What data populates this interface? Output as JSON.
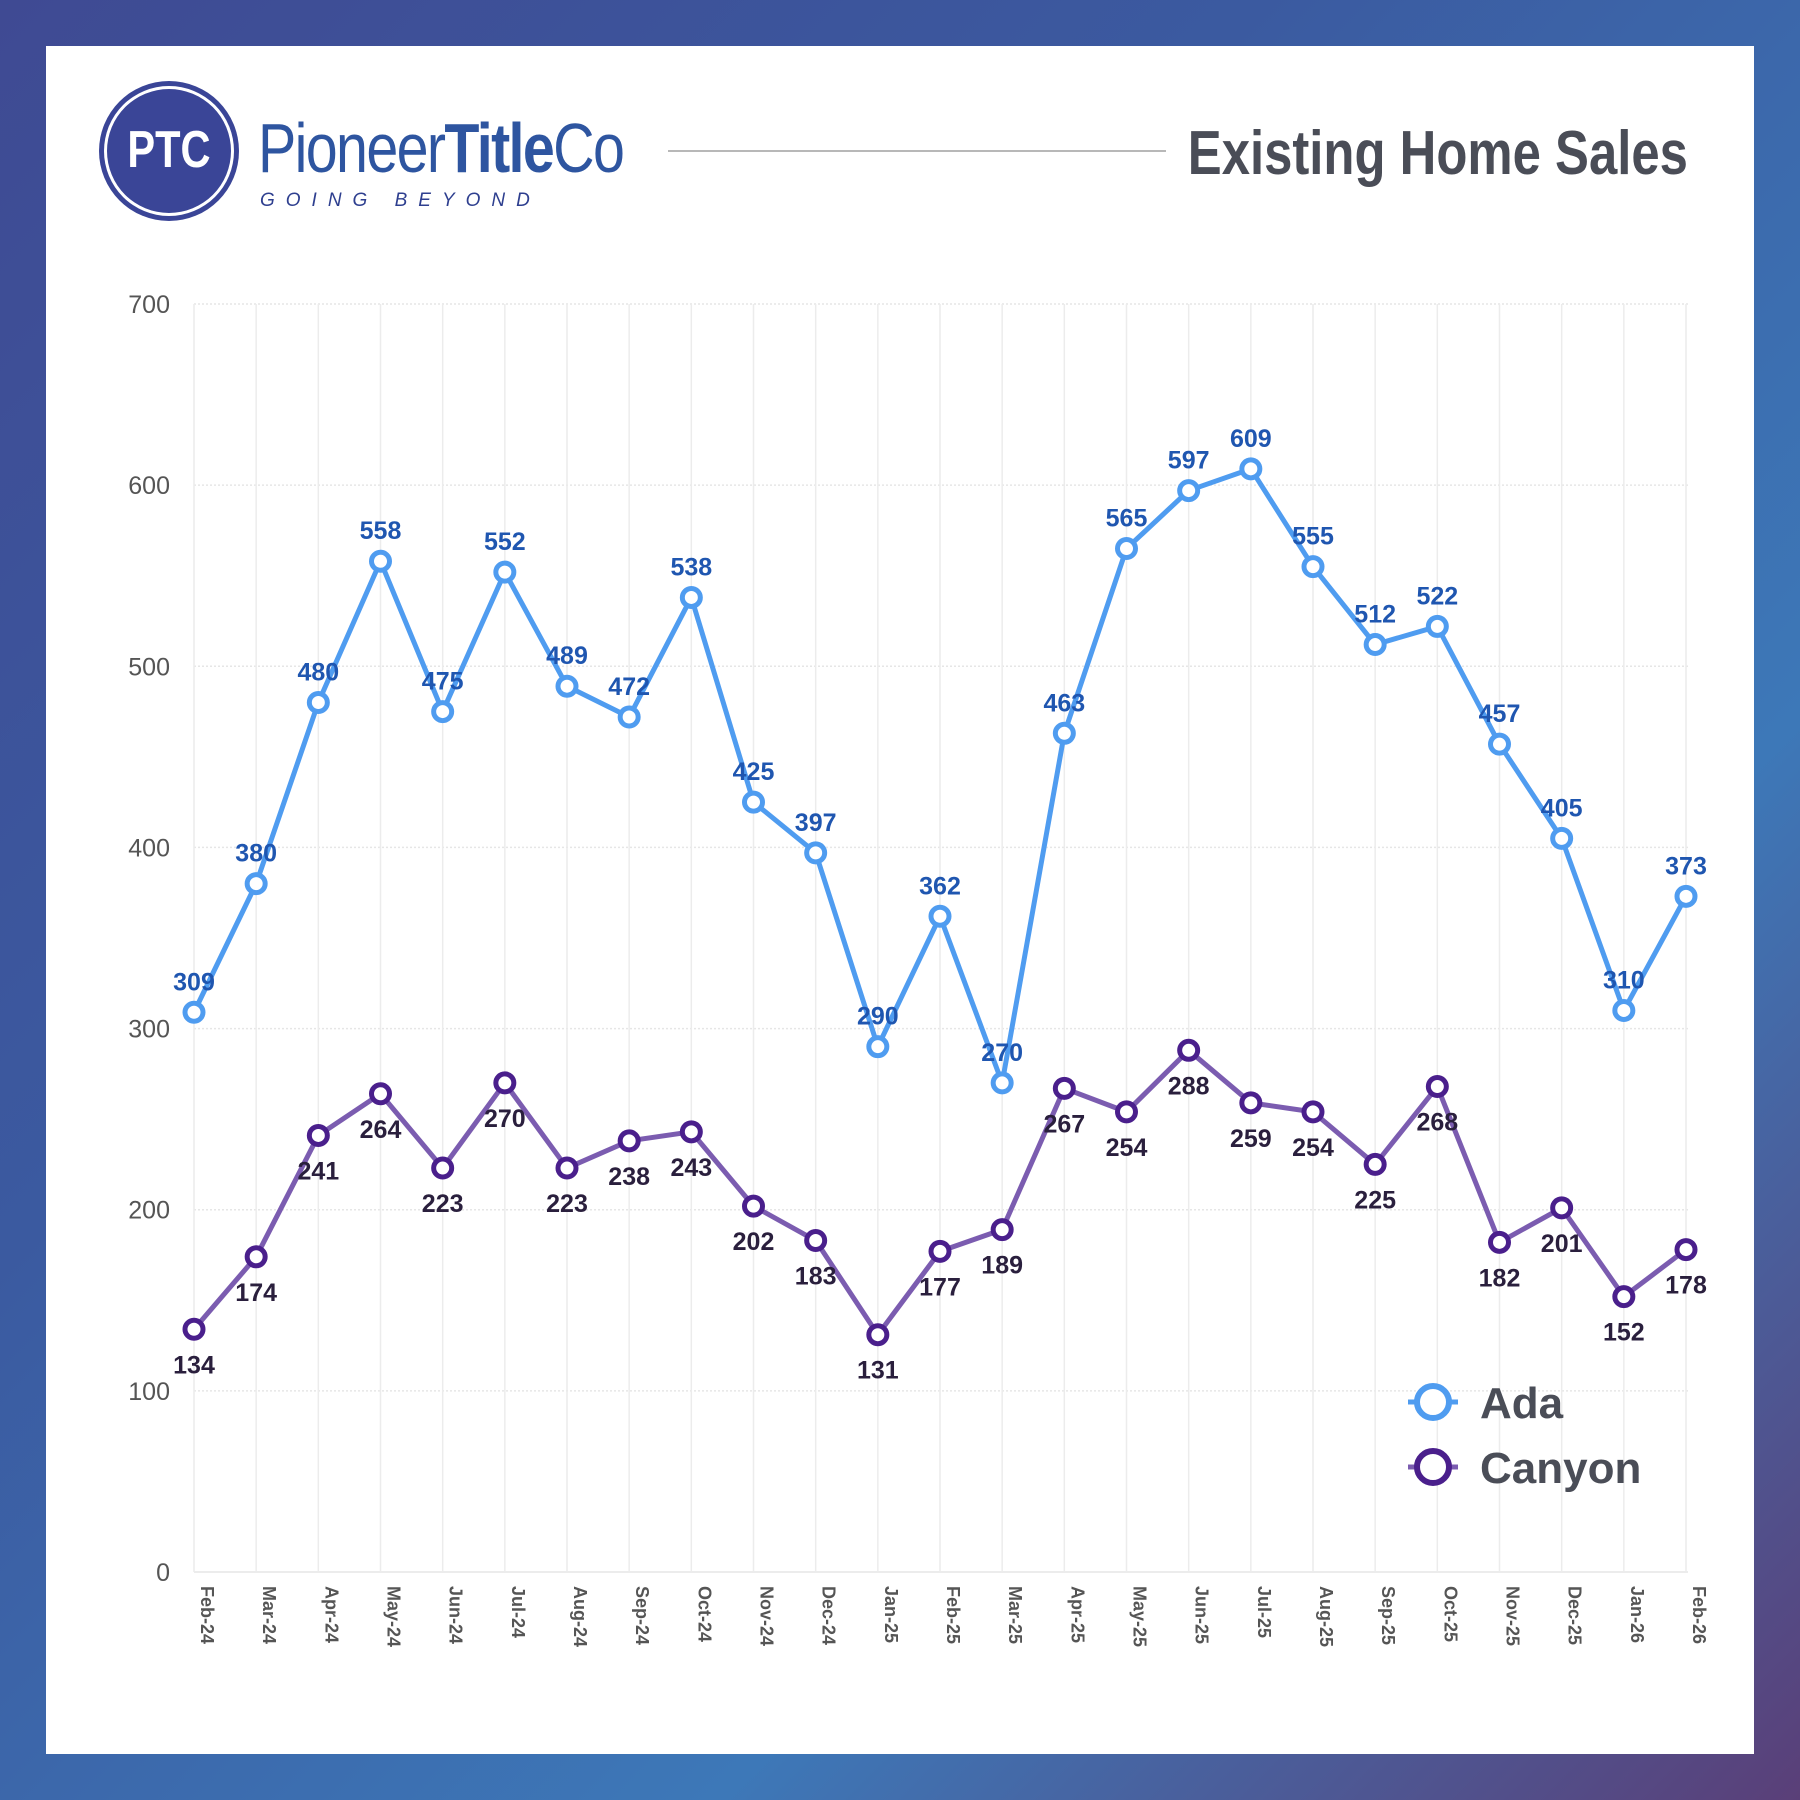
{
  "header": {
    "logo_mark": "PTC",
    "brand_regular": "Pioneer",
    "brand_bold": "Title",
    "brand_suffix": "Co",
    "tagline": "GOING BEYOND",
    "title": "Existing Home Sales"
  },
  "colors": {
    "ada": "#4f9cf0",
    "ada_label": "#1f56b0",
    "canyon": "#7b5cb0",
    "canyon_marker": "#4a1f8c",
    "canyon_label": "#2a1f3d"
  },
  "chart_data": {
    "type": "line",
    "title": "Existing Home Sales",
    "categories": [
      "Feb-24",
      "Mar-24",
      "Apr-24",
      "May-24",
      "Jun-24",
      "Jul-24",
      "Aug-24",
      "Sep-24",
      "Oct-24",
      "Nov-24",
      "Dec-24",
      "Jan-25",
      "Feb-25",
      "Mar-25",
      "Apr-25",
      "May-25",
      "Jun-25",
      "Jul-25",
      "Aug-25",
      "Sep-25",
      "Oct-25",
      "Nov-25",
      "Dec-25",
      "Jan-26",
      "Feb-26"
    ],
    "series": [
      {
        "name": "Ada",
        "values": [
          309,
          380,
          480,
          558,
          475,
          552,
          489,
          472,
          538,
          425,
          397,
          290,
          362,
          270,
          463,
          565,
          597,
          609,
          555,
          512,
          522,
          457,
          405,
          310,
          373
        ]
      },
      {
        "name": "Canyon",
        "values": [
          134,
          174,
          241,
          264,
          223,
          270,
          223,
          238,
          243,
          202,
          183,
          131,
          177,
          189,
          267,
          254,
          288,
          259,
          254,
          225,
          268,
          182,
          201,
          152,
          178
        ]
      }
    ],
    "ylim": [
      0,
      700
    ],
    "yticks": [
      0,
      100,
      200,
      300,
      400,
      500,
      600,
      700
    ],
    "grid": true,
    "legend": "bottom-right"
  }
}
